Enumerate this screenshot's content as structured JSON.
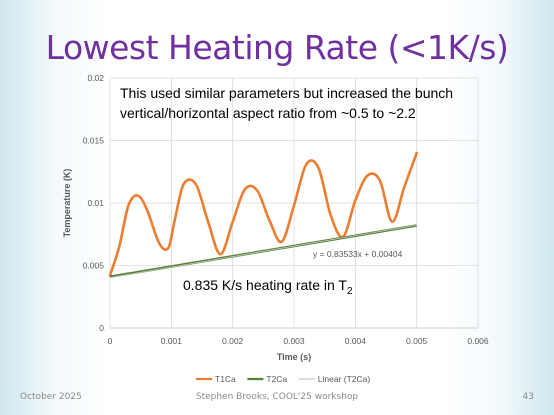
{
  "slide": {
    "title": "Lowest Heating Rate (<1K/s)",
    "footer_left": "October 2025",
    "footer_center": "Stephen Brooks, COOL'25 workshop",
    "page_number": "43"
  },
  "chart_data": {
    "type": "line",
    "xlabel": "Time (s)",
    "ylabel": "Temperature (K)",
    "xlim": [
      0,
      0.006
    ],
    "ylim": [
      0,
      0.02
    ],
    "xticks": [
      "0",
      "0.001",
      "0.002",
      "0.003",
      "0.004",
      "0.005",
      "0.006"
    ],
    "yticks": [
      "0",
      "0.005",
      "0.01",
      "0.015",
      "0.02"
    ],
    "grid": true,
    "legend_position": "bottom",
    "series": [
      {
        "name": "T1Ca",
        "color": "#ed7d31",
        "x": [
          0,
          0.00015,
          0.0003,
          0.00045,
          0.0006,
          0.0008,
          0.00095,
          0.00105,
          0.0012,
          0.0014,
          0.0016,
          0.0018,
          0.002,
          0.0022,
          0.0024,
          0.0026,
          0.0028,
          0.003,
          0.0032,
          0.0034,
          0.0036,
          0.0038,
          0.004,
          0.0042,
          0.0044,
          0.0046,
          0.0048,
          0.005
        ],
        "y": [
          0.0042,
          0.0065,
          0.0098,
          0.0106,
          0.0095,
          0.0068,
          0.0064,
          0.0085,
          0.0115,
          0.0115,
          0.0085,
          0.0059,
          0.0085,
          0.0111,
          0.011,
          0.0086,
          0.0069,
          0.0098,
          0.0131,
          0.0128,
          0.009,
          0.0073,
          0.0102,
          0.0122,
          0.0118,
          0.0085,
          0.0113,
          0.014
        ]
      },
      {
        "name": "T2Ca",
        "color": "#548235",
        "x": [
          0,
          0.005
        ],
        "y": [
          0.0041,
          0.0082
        ]
      },
      {
        "name": "Linear (T2Ca)",
        "color": "#c9c9c9",
        "x": [
          0,
          0.005
        ],
        "y": [
          0.00404,
          0.00822
        ]
      }
    ],
    "annotations": {
      "description": "This used similar parameters but increased the bunch vertical/horizontal aspect ratio from ~0.5 to ~2.2",
      "description_line1": "This used similar parameters but increased the bunch",
      "description_line2": "vertical/horizontal aspect ratio from ~0.5 to ~2.2",
      "trendline_equation": "y = 0.83533x + 0.00404",
      "heating_rate_text": "0.835 K/s heating rate in T",
      "heating_rate_subscript": "2"
    }
  }
}
